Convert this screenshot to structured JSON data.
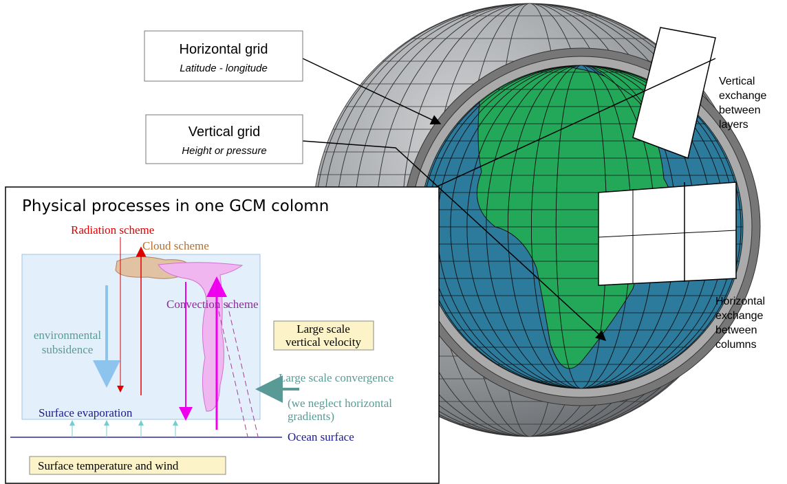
{
  "globe_labels": {
    "horizontal_grid": {
      "title": "Horizontal grid",
      "subtitle": "Latitude - longitude"
    },
    "vertical_grid": {
      "title": "Vertical grid",
      "subtitle": "Height or pressure"
    },
    "vertical_exchange": [
      "Vertical",
      "exchange",
      "between",
      "layers"
    ],
    "horizontal_exchange": [
      "Horizontal",
      "exchange",
      "between",
      "columns"
    ]
  },
  "inset": {
    "title": "Physical processes in one GCM colomn",
    "radiation": "Radiation scheme",
    "cloud": "Cloud scheme",
    "convection": "Convection scheme",
    "subsidence": [
      "environmental",
      "subsidence"
    ],
    "vertical_velocity": [
      "Large scale",
      "vertical velocity"
    ],
    "convergence": "Large scale convergence",
    "neglect": [
      "(we neglect horizontal",
      "gradients)"
    ],
    "evaporation": "Surface evaporation",
    "ocean": "Ocean surface",
    "surface_box": "Surface temperature and wind"
  }
}
